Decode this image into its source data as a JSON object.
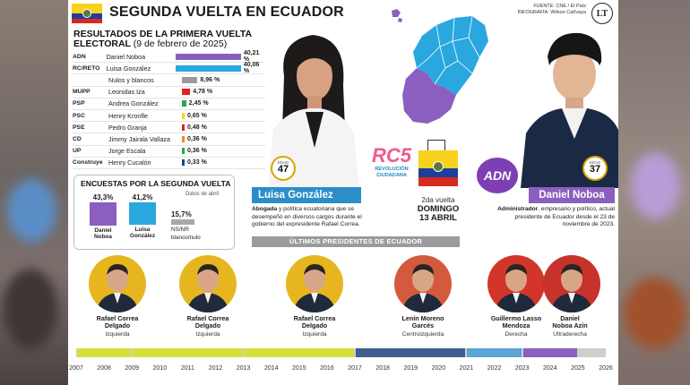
{
  "header": {
    "title": "SEGUNDA VUELTA EN ECUADOR",
    "fuente": "FUENTE: CNE / El País",
    "infografia": "INFOGRAFÍA: Wilson Cañvaya",
    "logo": "LT"
  },
  "resultados": {
    "title": "RESULTADOS DE LA PRIMERA VUELTA ELECTORAL",
    "date": "(9 de febrero de 2025)",
    "rows": [
      {
        "party": "ADN",
        "name": "Daniel Noboa",
        "pct": "40,21 %",
        "value": 40.21,
        "color": "#8a5fbf"
      },
      {
        "party": "RC/RETO",
        "name": "Luisa González",
        "pct": "40,06 %",
        "value": 40.06,
        "color": "#2aa7df"
      },
      {
        "party": "",
        "name": "Nulos y blancos",
        "pct": "8,96 %",
        "value": 8.96,
        "color": "#9a9a9a"
      },
      {
        "party": "MUPP",
        "name": "Leonidas Iza",
        "pct": "4,78 %",
        "value": 4.78,
        "color": "#e2231a"
      },
      {
        "party": "PSP",
        "name": "Andrea González",
        "pct": "2,45 %",
        "value": 2.45,
        "color": "#2aa84a"
      },
      {
        "party": "PSC",
        "name": "Henry Kronfle",
        "pct": "0,65 %",
        "value": 0.65,
        "color": "#ffd21a"
      },
      {
        "party": "PSE",
        "name": "Pedro Granja",
        "pct": "0,48 %",
        "value": 0.48,
        "color": "#e2231a"
      },
      {
        "party": "CD",
        "name": "Jimmy Jairala Vallaza",
        "pct": "0,36 %",
        "value": 0.36,
        "color": "#f08a24"
      },
      {
        "party": "UP",
        "name": "Jorge Escala",
        "pct": "0,36 %",
        "value": 0.36,
        "color": "#2aa84a"
      },
      {
        "party": "Construye",
        "name": "Henry Cucalón",
        "pct": "0,33 %",
        "value": 0.33,
        "color": "#1d3f9c"
      }
    ]
  },
  "encuestas": {
    "title": "ENCUESTAS POR LA SEGUNDA VUELTA",
    "sub": "Datos de abril",
    "noboa": {
      "pct": "43,3%",
      "value": 43.3,
      "label": "Daniel Noboa",
      "color": "#8a5fbf"
    },
    "luisa": {
      "pct": "41,2%",
      "value": 41.2,
      "label": "Luisa González",
      "color": "#2aa7df"
    },
    "nsnr": {
      "pct": "15,7%",
      "value": 15.7,
      "label1": "NS/NR",
      "label2": "blanco/nulo",
      "color": "#a8a8a8"
    }
  },
  "candidatos": {
    "luisa": {
      "name": "Luisa González",
      "edad_label": "EDAD",
      "edad": "47",
      "desc_bold": "Abogada",
      "desc": " y política ecuatoriana que se desempeñó en diversos cargos durante el gobierno del expresidente Rafael Correa."
    },
    "noboa": {
      "name": "Daniel Noboa",
      "edad_label": "EDAD",
      "edad": "37",
      "desc_bold": "Administrador",
      "desc": ", empresario y político, actual presidente de Ecuador desde el 23 de noviembre de 2023."
    }
  },
  "logos": {
    "rc_mark": "RC5",
    "rc_line1": "REVOLUCIÓN",
    "rc_line2": "CIUDADANA",
    "adn": "ADN"
  },
  "votacion": {
    "vuelta": "2da vuelta",
    "dia": "DOMINGO",
    "fecha": "13 ABRIL"
  },
  "ultimos": {
    "title": "ÚLTIMOS PRESIDENTES DE ECUADOR",
    "presidentes": [
      {
        "name1": "Rafael Correa",
        "name2": "Delgado",
        "ideologia": "Izquierda",
        "bg": "#e7b61f"
      },
      {
        "name1": "Rafael Correa",
        "name2": "Delgado",
        "ideologia": "Izquierda",
        "bg": "#e7b61f"
      },
      {
        "name1": "Rafael Correa",
        "name2": "Delgado",
        "ideologia": "Izquierda",
        "bg": "#e7b61f"
      },
      {
        "name1": "Lenín Moreno",
        "name2": "Garcés",
        "ideologia": "Centroizquierda",
        "bg": "#d45a3e"
      },
      {
        "name1": "Guillermo Lasso",
        "name2": "Mendoza",
        "ideologia": "Derecha",
        "bg": "#d2352a"
      },
      {
        "name1": "Daniel",
        "name2": "Noboa Azín",
        "ideologia": "Ultraderecha",
        "bg": "#c7322a"
      }
    ],
    "years": [
      "2007",
      "2008",
      "2009",
      "2010",
      "2011",
      "2012",
      "2013",
      "2014",
      "2015",
      "2016",
      "2017",
      "2018",
      "2019",
      "2020",
      "2021",
      "2022",
      "2023",
      "2024",
      "2025",
      "2026"
    ],
    "periods": [
      {
        "from": "2007",
        "to": "2009",
        "color": "#d7df3a"
      },
      {
        "from": "2009",
        "to": "2013",
        "color": "#d7df3a"
      },
      {
        "from": "2013",
        "to": "2017",
        "color": "#d7df3a"
      },
      {
        "from": "2017",
        "to": "2021",
        "color": "#3f5f8f"
      },
      {
        "from": "2021",
        "to": "2023",
        "color": "#5aa6d6"
      },
      {
        "from": "2023",
        "to": "2025",
        "color": "#8a5fbf"
      }
    ]
  }
}
